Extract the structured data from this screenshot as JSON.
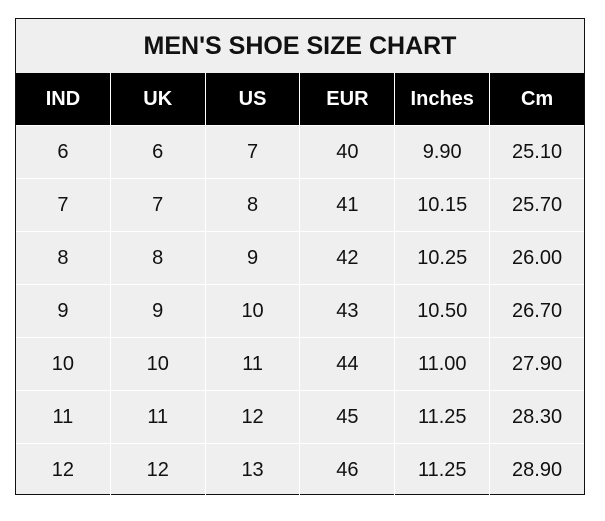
{
  "title": "MEN'S SHOE SIZE CHART",
  "columns": [
    "IND",
    "UK",
    "US",
    "EUR",
    "Inches",
    "Cm"
  ],
  "rows": [
    [
      "6",
      "6",
      "7",
      "40",
      "9.90",
      "25.10"
    ],
    [
      "7",
      "7",
      "8",
      "41",
      "10.15",
      "25.70"
    ],
    [
      "8",
      "8",
      "9",
      "42",
      "10.25",
      "26.00"
    ],
    [
      "9",
      "9",
      "10",
      "43",
      "10.50",
      "26.70"
    ],
    [
      "10",
      "10",
      "11",
      "44",
      "11.00",
      "27.90"
    ],
    [
      "11",
      "11",
      "12",
      "45",
      "11.25",
      "28.30"
    ],
    [
      "12",
      "12",
      "13",
      "46",
      "11.25",
      "28.90"
    ]
  ],
  "colors": {
    "header_bg": "#000000",
    "cell_bg": "#efefef",
    "grid": "#ffffff"
  }
}
